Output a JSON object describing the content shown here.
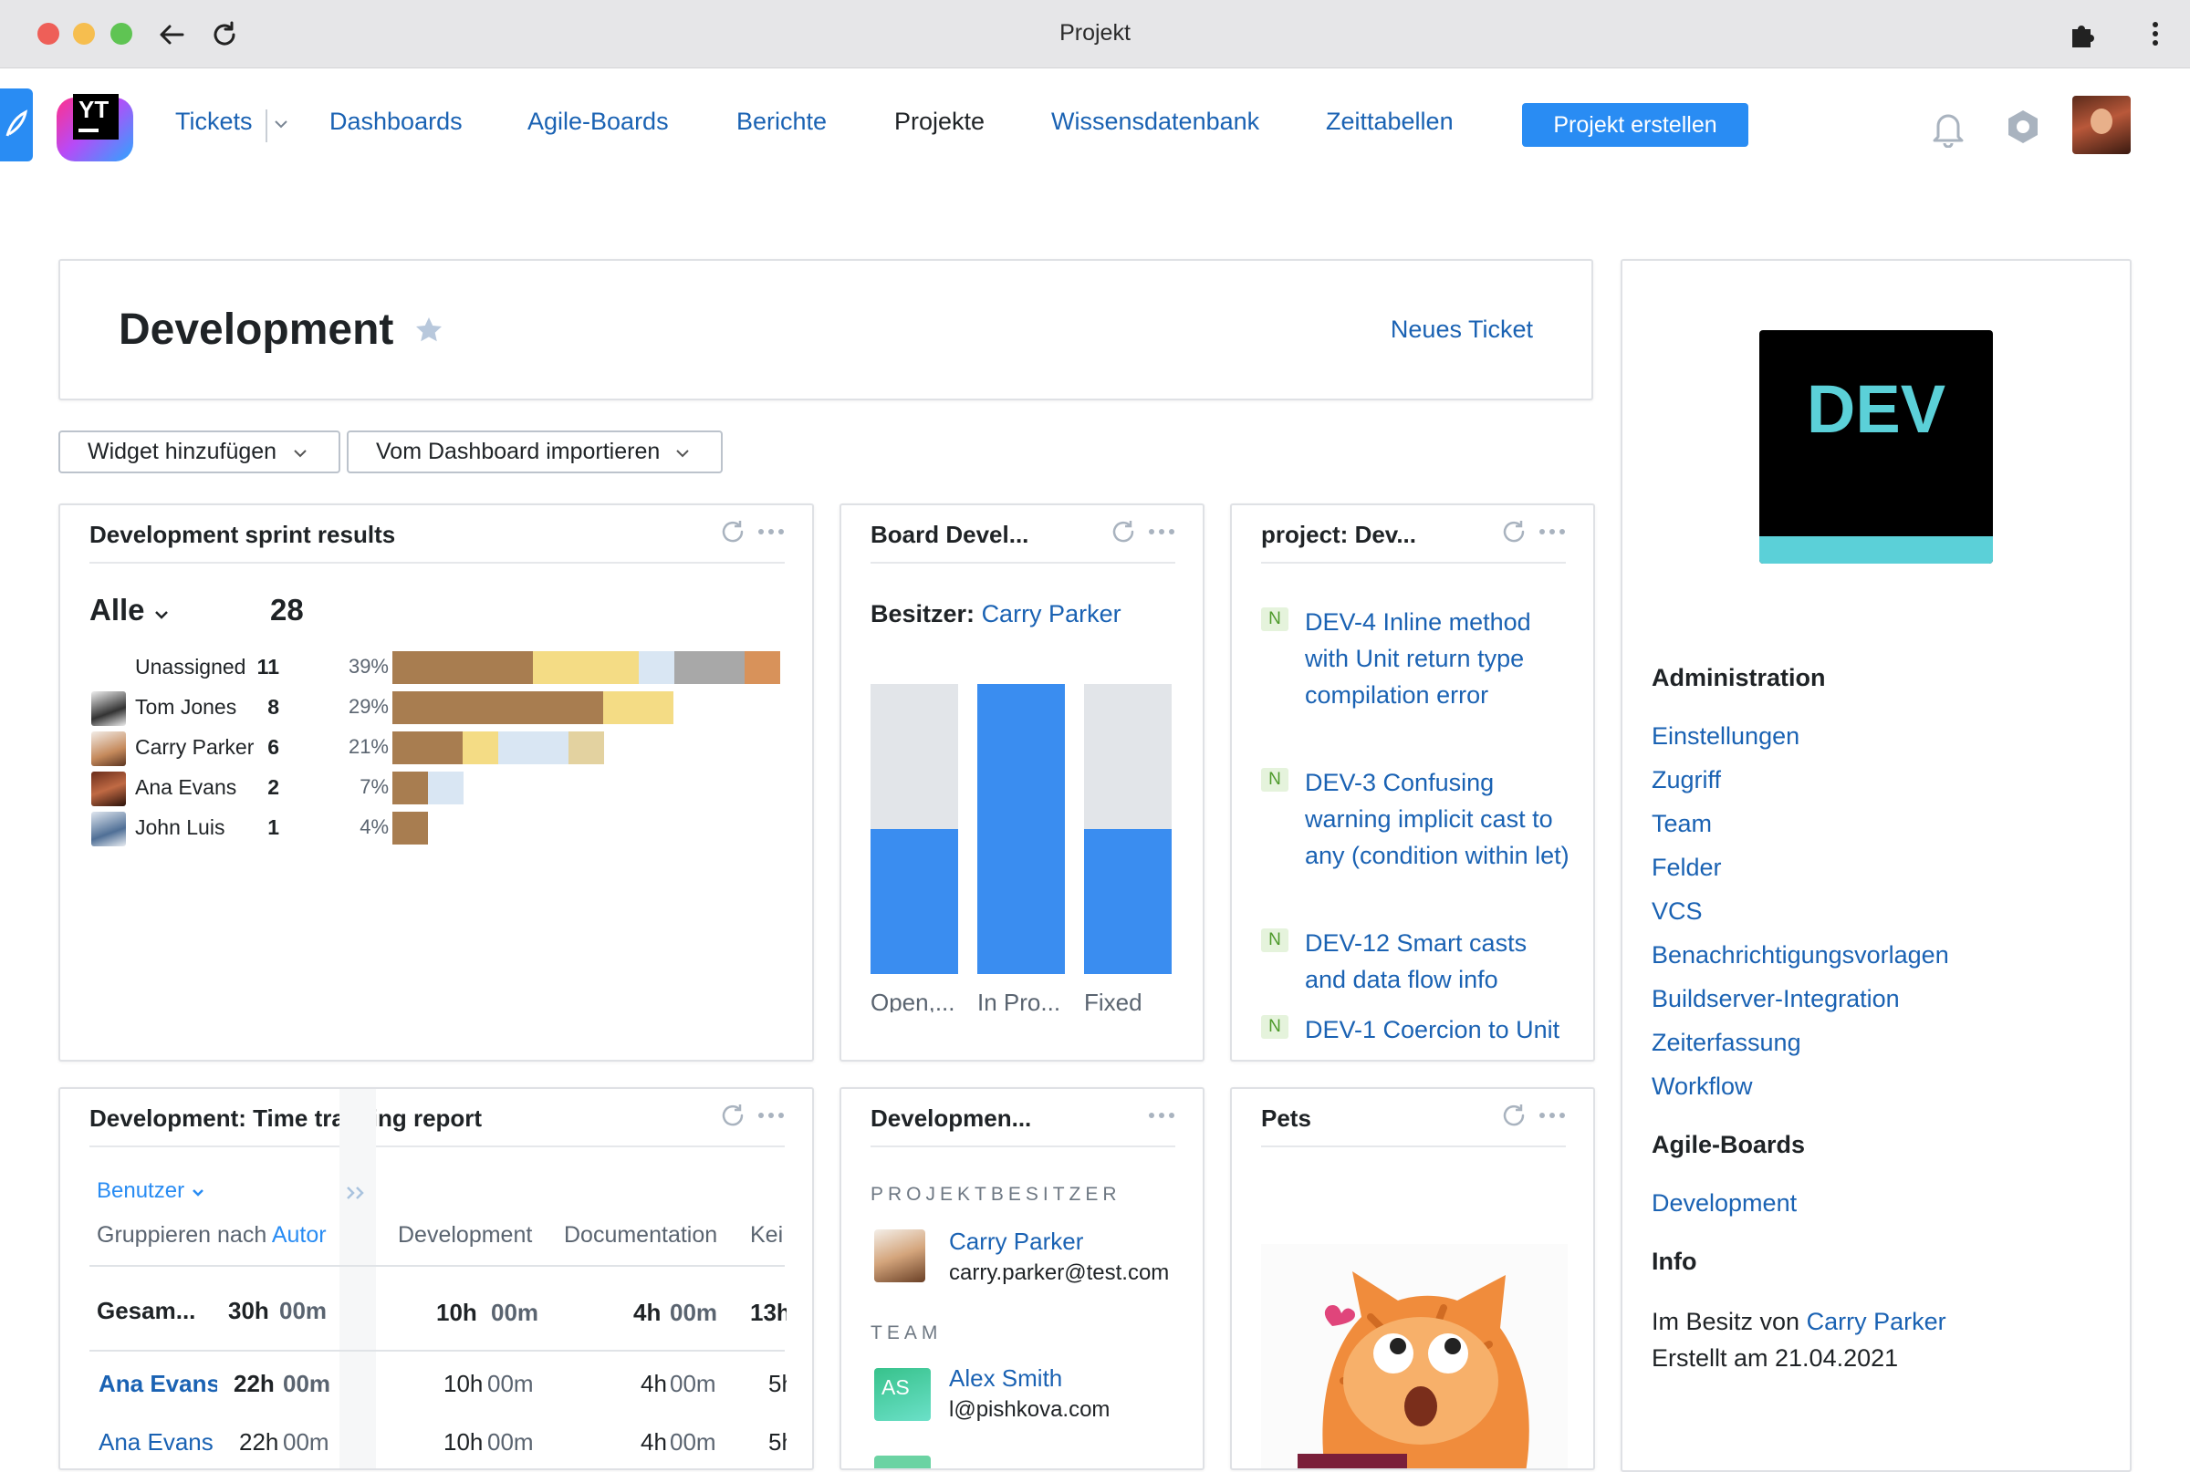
{
  "window": {
    "title": "Projekt"
  },
  "nav": {
    "logo_text": "YT",
    "items": [
      "Tickets",
      "Dashboards",
      "Agile-Boards",
      "Berichte",
      "Projekte",
      "Wissensdatenbank",
      "Zeittabellen"
    ],
    "create_button": "Projekt erstellen"
  },
  "project": {
    "title": "Development",
    "new_ticket": "Neues Ticket",
    "logo_text": "DEV",
    "logo_colors": {
      "bg": "#000000",
      "text": "#5bd0d8",
      "bar": "#5bd0d8"
    }
  },
  "toolbar": {
    "add_widget": "Widget hinzufügen",
    "import_dashboard": "Vom Dashboard importieren"
  },
  "sprint": {
    "title": "Development sprint results",
    "filter": "Alle",
    "total": "28",
    "rows": [
      {
        "name": "Unassigned",
        "count": "11",
        "pct": "39%",
        "segments": [
          0.36,
          0.27,
          0.09,
          0.18,
          0.09
        ]
      },
      {
        "name": "Tom Jones",
        "count": "8",
        "pct": "29%",
        "segments": [
          0.54,
          0.18
        ]
      },
      {
        "name": "Carry Parker",
        "count": "6",
        "pct": "21%",
        "segments": [
          0.18,
          0.09,
          0.18,
          0.09
        ]
      },
      {
        "name": "Ana Evans",
        "count": "2",
        "pct": "7%",
        "segments": [
          0.09,
          0.09
        ]
      },
      {
        "name": "John Luis",
        "count": "1",
        "pct": "4%",
        "segments": [
          0.09
        ]
      }
    ],
    "segment_colors": [
      "#a87d50",
      "#f4dc85",
      "#d9e6f3",
      "#a8a8a8",
      "#d8925a"
    ],
    "row4_colors": [
      "#a87d50",
      "#d9e6f3"
    ],
    "row3_colors": [
      "#a87d50",
      "#f4dc85",
      "#d9e6f3",
      "#e3d2a0"
    ]
  },
  "board": {
    "title": "Board Devel...",
    "owner_label": "Besitzer:",
    "owner_name": "Carry Parker",
    "chart_data": {
      "type": "bar",
      "categories": [
        "Open,...",
        "In Pro...",
        "Fixed"
      ],
      "values": [
        0.5,
        1.0,
        0.5
      ],
      "series_colors": {
        "value": "#3a8df0",
        "rest": "#e2e5e9"
      }
    }
  },
  "issues": {
    "title": "project: Dev...",
    "items": [
      {
        "badge": "N",
        "text": "DEV-4  Inline method with Unit return type compilation error"
      },
      {
        "badge": "N",
        "text": "DEV-3  Confusing warning implicit cast to any (condition within let)"
      },
      {
        "badge": "N",
        "text": "DEV-12  Smart casts and data flow info"
      },
      {
        "badge": "N",
        "text": "DEV-1  Coercion to Unit"
      }
    ]
  },
  "timetracking": {
    "title": "Development: Time tracking report",
    "user_filter": "Benutzer",
    "group_by": "Gruppieren nach",
    "group_by_value": "Autor",
    "columns": [
      "Development",
      "Documentation",
      "Kei"
    ],
    "total": {
      "label": "Gesam...",
      "h": "30h",
      "m": "00m",
      "c1h": "10h",
      "c1m": "00m",
      "c2h": "4h",
      "c2m": "00m",
      "c3": "13h"
    },
    "rows": [
      {
        "name": "Ana Evans",
        "h": "22h",
        "m": "00m",
        "c1h": "10h",
        "c1m": "00m",
        "c2h": "4h",
        "c2m": "00m",
        "c3": "5h"
      },
      {
        "name": "Ana Evans",
        "h": "22h",
        "m": "00m",
        "c1h": "10h",
        "c1m": "00m",
        "c2h": "4h",
        "c2m": "00m",
        "c3": "5h"
      }
    ]
  },
  "team": {
    "title": "Developmen...",
    "owner_heading": "PROJEKTBESITZER",
    "owner_name": "Carry Parker",
    "owner_email": "carry.parker@test.com",
    "team_heading": "TEAM",
    "member_initials": "AS",
    "member_name": "Alex Smith",
    "member_email": "l@pishkova.com"
  },
  "pets": {
    "title": "Pets"
  },
  "sidebar": {
    "admin_heading": "Administration",
    "admin_links": [
      "Einstellungen",
      "Zugriff",
      "Team",
      "Felder",
      "VCS",
      "Benachrichtigungsvorlagen",
      "Buildserver-Integration",
      "Zeiterfassung",
      "Workflow"
    ],
    "boards_heading": "Agile-Boards",
    "board_link": "Development",
    "info_heading": "Info",
    "owned_by": "Im Besitz von",
    "owner_name": "Carry Parker",
    "created": "Erstellt am 21.04.2021"
  }
}
